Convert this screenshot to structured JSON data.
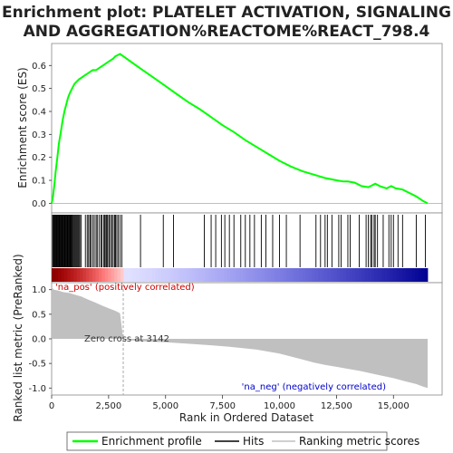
{
  "colors": {
    "enrichment_line": "#00ff00",
    "hits": "#000000",
    "ranking_fill": "#c0c0c0",
    "pos_label": "#cc0000",
    "neg_label": "#0000cc",
    "zero_cross_line": "#aaaaaa"
  },
  "chart_data": [
    {
      "type": "line",
      "title_lines": [
        "Enrichment plot: PLATELET ACTIVATION, SIGNALING",
        "AND AGGREGATION%REACTOME%REACT_798.4"
      ],
      "ylabel": "Enrichment score (ES)",
      "xlim": [
        0,
        16500
      ],
      "ylim": [
        -0.03,
        0.68
      ],
      "yticks": [
        "0.0",
        "0.1",
        "0.2",
        "0.3",
        "0.4",
        "0.5",
        "0.6"
      ],
      "series": [
        {
          "name": "Enrichment profile",
          "x": [
            0,
            60,
            120,
            180,
            250,
            320,
            400,
            480,
            560,
            640,
            720,
            800,
            900,
            1000,
            1100,
            1200,
            1350,
            1500,
            1650,
            1800,
            1950,
            2100,
            2250,
            2400,
            2550,
            2700,
            2800,
            2900,
            3000,
            3142,
            3500,
            4000,
            4500,
            5000,
            5500,
            6000,
            6500,
            7000,
            7500,
            8000,
            8500,
            9000,
            9500,
            10000,
            10500,
            11000,
            11500,
            12000,
            12500,
            12800,
            13000,
            13300,
            13600,
            13900,
            14200,
            14400,
            14700,
            14900,
            15100,
            15400,
            15700,
            16000,
            16300,
            16500
          ],
          "y": [
            0.0,
            0.03,
            0.08,
            0.14,
            0.2,
            0.26,
            0.31,
            0.36,
            0.4,
            0.43,
            0.46,
            0.48,
            0.5,
            0.52,
            0.53,
            0.54,
            0.55,
            0.56,
            0.57,
            0.58,
            0.58,
            0.59,
            0.6,
            0.61,
            0.62,
            0.63,
            0.64,
            0.645,
            0.65,
            0.64,
            0.615,
            0.58,
            0.545,
            0.51,
            0.475,
            0.44,
            0.41,
            0.375,
            0.34,
            0.31,
            0.275,
            0.245,
            0.215,
            0.185,
            0.16,
            0.14,
            0.125,
            0.11,
            0.1,
            0.095,
            0.095,
            0.09,
            0.075,
            0.07,
            0.085,
            0.075,
            0.065,
            0.075,
            0.065,
            0.06,
            0.045,
            0.03,
            0.01,
            0.0
          ]
        }
      ]
    },
    {
      "type": "barcode",
      "series": [
        {
          "name": "Hits",
          "x": [
            40,
            80,
            110,
            140,
            170,
            200,
            230,
            260,
            290,
            320,
            350,
            380,
            410,
            440,
            470,
            500,
            530,
            560,
            590,
            620,
            650,
            680,
            710,
            740,
            770,
            800,
            830,
            860,
            890,
            920,
            960,
            1000,
            1040,
            1080,
            1120,
            1160,
            1200,
            1240,
            1300,
            1480,
            1560,
            1620,
            1680,
            1720,
            1800,
            1870,
            1950,
            2000,
            2080,
            2160,
            2200,
            2280,
            2330,
            2380,
            2420,
            2460,
            2520,
            2580,
            2640,
            2700,
            2760,
            2800,
            2860,
            2920,
            3000,
            3080,
            3900,
            4900,
            5350,
            6700,
            7000,
            7200,
            7450,
            7600,
            7800,
            8000,
            8300,
            8500,
            8700,
            8900,
            9200,
            9400,
            9700,
            10000,
            10300,
            10900,
            11600,
            11800,
            12000,
            12100,
            12300,
            12600,
            12700,
            13000,
            13100,
            13500,
            13800,
            13900,
            14000,
            14050,
            14150,
            14200,
            14300,
            14550,
            14800,
            14900,
            15000,
            15200,
            15400,
            16000,
            16400
          ]
        }
      ]
    },
    {
      "type": "area",
      "title": "",
      "xlabel": "Rank in Ordered Dataset",
      "ylabel": "Ranked list metric (PreRanked)",
      "xlim": [
        0,
        16500
      ],
      "ylim": [
        -1.05,
        1.05
      ],
      "xticks": [
        "0",
        "2,500",
        "5,000",
        "7,500",
        "10,000",
        "12,500",
        "15,000"
      ],
      "yticks": [
        "-1.0",
        "-0.5",
        "0.0",
        "0.5",
        "1.0"
      ],
      "annotations": {
        "pos": "'na_pos' (positively correlated)",
        "neg": "'na_neg' (negatively correlated)",
        "zero_cross": "Zero cross at 3142"
      },
      "zero_cross": 3142,
      "series": [
        {
          "name": "Ranking metric scores",
          "x": [
            0,
            100,
            300,
            500,
            800,
            1000,
            1300,
            1600,
            1900,
            2200,
            2500,
            2800,
            3000,
            3142,
            3500,
            4000,
            5000,
            6000,
            7000,
            8000,
            9000,
            10000,
            10500,
            11000,
            11500,
            12000,
            12500,
            13000,
            13500,
            14000,
            14500,
            15000,
            15500,
            16000,
            16300,
            16500
          ],
          "values": [
            1.05,
            1.0,
            0.98,
            0.95,
            0.93,
            0.9,
            0.86,
            0.8,
            0.74,
            0.68,
            0.62,
            0.57,
            0.52,
            0.0,
            -0.03,
            -0.05,
            -0.07,
            -0.1,
            -0.13,
            -0.17,
            -0.22,
            -0.3,
            -0.36,
            -0.42,
            -0.48,
            -0.53,
            -0.57,
            -0.61,
            -0.65,
            -0.7,
            -0.75,
            -0.8,
            -0.86,
            -0.92,
            -0.97,
            -1.0
          ]
        }
      ]
    }
  ],
  "legend": {
    "items": [
      {
        "label": "Enrichment profile",
        "color": "#00ff00"
      },
      {
        "label": "Hits",
        "color": "#000000"
      },
      {
        "label": "Ranking metric scores",
        "color": "#c0c0c0"
      }
    ]
  }
}
